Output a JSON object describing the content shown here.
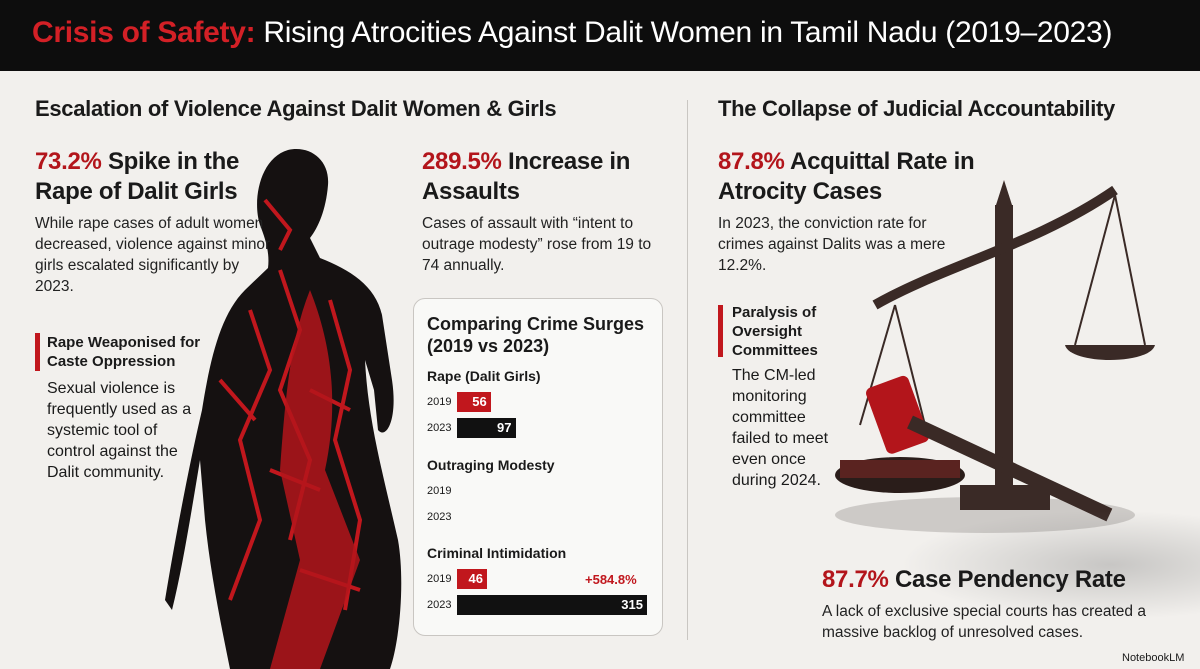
{
  "header": {
    "title_highlight": "Crisis of Safety:",
    "title_rest": "Rising Atrocities Against Dalit Women in Tamil Nadu (2019–2023)"
  },
  "left": {
    "heading": "Escalation of Violence Against Dalit Women & Girls",
    "stat_girls": {
      "figure": "73.2%",
      "label": "Spike in the Rape of Dalit Girls",
      "text": "While rape cases of adult women decreased, violence against minor girls escalated significantly by 2023."
    },
    "callout": {
      "title": "Rape Weaponised for Caste Oppression",
      "text": "Sexual violence is frequently used as a systemic tool of control against the Dalit community."
    },
    "stat_assaults": {
      "figure": "289.5%",
      "label": "Increase in Assaults",
      "text": "Cases of assault with “intent to outrage modesty” rose from 19 to 74 annually."
    }
  },
  "crime_chart": {
    "title": "Comparing Crime Surges (2019 vs 2023)",
    "colors": [
      "#c1171d",
      "#111111"
    ],
    "groups": [
      {
        "name": "Rape (Dalit Girls)",
        "labels": [
          "2019",
          "2023"
        ],
        "values": [
          56,
          97
        ]
      },
      {
        "name": "Outraging Modesty",
        "labels": [
          "2019",
          "2023"
        ],
        "values": [
          null,
          null
        ]
      },
      {
        "name": "Criminal Intimidation",
        "labels": [
          "2019",
          "2023"
        ],
        "values": [
          46,
          315
        ],
        "annotation": "+584.8%"
      }
    ]
  },
  "right": {
    "heading": "The Collapse of Judicial Accountability",
    "stat_acquittal": {
      "figure": "87.8%",
      "label": "Acquittal Rate in Atrocity Cases",
      "text": "In 2023, the conviction rate for crimes against Dalits was a mere 12.2%."
    },
    "callout": {
      "title": "Paralysis of Oversight Committees",
      "text": "The CM-led monitoring committee failed to meet even once during 2024."
    },
    "stat_pendency": {
      "figure": "87.7%",
      "label": "Case Pendency Rate",
      "text": "A lack of exclusive special courts has created a massive backlog of unresolved cases."
    }
  },
  "footer": {
    "brand": "NotebookLM"
  }
}
